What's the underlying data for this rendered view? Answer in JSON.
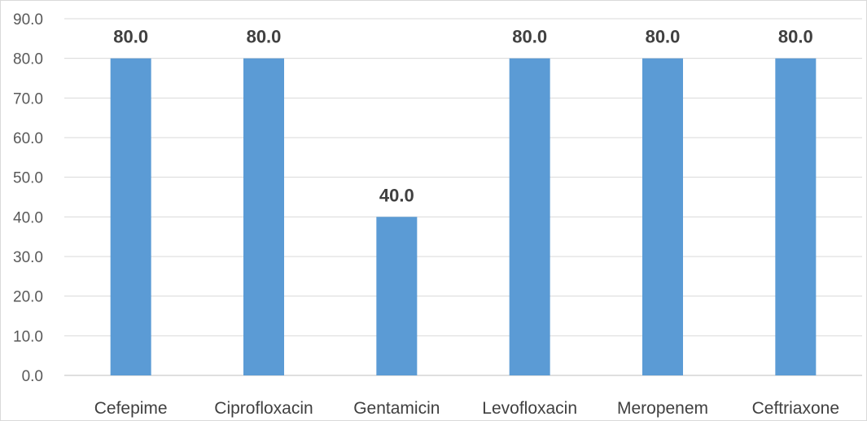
{
  "chart_data": {
    "type": "bar",
    "categories": [
      "Cefepime",
      "Ciprofloxacin",
      "Gentamicin",
      "Levofloxacin",
      "Meropenem",
      "Ceftriaxone"
    ],
    "values": [
      80.0,
      80.0,
      40.0,
      80.0,
      80.0,
      80.0
    ],
    "data_labels": [
      "80.0",
      "80.0",
      "40.0",
      "80.0",
      "80.0",
      "80.0"
    ],
    "y_ticks": [
      "0.0",
      "10.0",
      "20.0",
      "30.0",
      "40.0",
      "50.0",
      "60.0",
      "70.0",
      "80.0",
      "90.0"
    ],
    "ylim": [
      0,
      90
    ],
    "grid": true,
    "legend": "none",
    "bar_color": "#5b9bd5",
    "title": "",
    "xlabel": "",
    "ylabel": ""
  }
}
